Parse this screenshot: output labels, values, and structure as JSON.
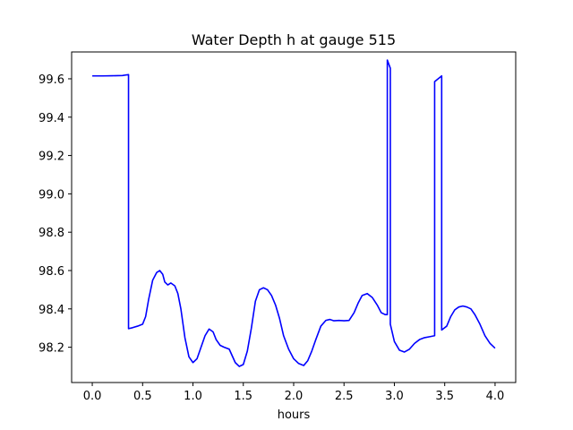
{
  "chart_data": {
    "type": "line",
    "title": "Water Depth h at gauge 515",
    "xlabel": "hours",
    "ylabel": "",
    "xlim": [
      -0.205,
      4.205
    ],
    "ylim": [
      98.016,
      99.74
    ],
    "xticks": [
      0.0,
      0.5,
      1.0,
      1.5,
      2.0,
      2.5,
      3.0,
      3.5,
      4.0
    ],
    "xtick_labels": [
      "0.0",
      "0.5",
      "1.0",
      "1.5",
      "2.0",
      "2.5",
      "3.0",
      "3.5",
      "4.0"
    ],
    "yticks": [
      98.2,
      98.4,
      98.6,
      98.8,
      99.0,
      99.2,
      99.4,
      99.6
    ],
    "ytick_labels": [
      "98.2",
      "98.4",
      "98.6",
      "98.8",
      "99.0",
      "99.2",
      "99.4",
      "99.6"
    ],
    "grid": false,
    "series": [
      {
        "color": "#0000ff",
        "x": [
          0.0,
          0.1,
          0.2,
          0.3,
          0.36,
          0.36,
          0.4,
          0.45,
          0.5,
          0.53,
          0.56,
          0.6,
          0.64,
          0.67,
          0.7,
          0.72,
          0.75,
          0.78,
          0.82,
          0.85,
          0.88,
          0.92,
          0.96,
          1.0,
          1.04,
          1.08,
          1.12,
          1.16,
          1.2,
          1.23,
          1.27,
          1.31,
          1.36,
          1.42,
          1.46,
          1.5,
          1.54,
          1.58,
          1.62,
          1.66,
          1.7,
          1.74,
          1.78,
          1.82,
          1.86,
          1.9,
          1.95,
          2.0,
          2.05,
          2.1,
          2.14,
          2.18,
          2.22,
          2.27,
          2.32,
          2.36,
          2.4,
          2.45,
          2.5,
          2.55,
          2.6,
          2.64,
          2.68,
          2.73,
          2.78,
          2.83,
          2.87,
          2.91,
          2.93,
          2.93,
          2.96,
          2.96,
          3.0,
          3.05,
          3.1,
          3.15,
          3.2,
          3.25,
          3.3,
          3.35,
          3.4,
          3.4,
          3.47,
          3.47,
          3.52,
          3.56,
          3.6,
          3.64,
          3.68,
          3.72,
          3.76,
          3.8,
          3.85,
          3.9,
          3.95,
          4.0
        ],
        "y": [
          99.615,
          99.615,
          99.616,
          99.617,
          99.622,
          98.297,
          98.302,
          98.31,
          98.32,
          98.36,
          98.45,
          98.55,
          98.59,
          98.6,
          98.58,
          98.54,
          98.525,
          98.535,
          98.52,
          98.48,
          98.4,
          98.25,
          98.15,
          98.12,
          98.14,
          98.2,
          98.26,
          98.295,
          98.28,
          98.24,
          98.21,
          98.2,
          98.19,
          98.12,
          98.1,
          98.11,
          98.18,
          98.3,
          98.44,
          98.5,
          98.51,
          98.5,
          98.47,
          98.42,
          98.35,
          98.26,
          98.19,
          98.14,
          98.115,
          98.105,
          98.13,
          98.18,
          98.24,
          98.31,
          98.34,
          98.345,
          98.338,
          98.34,
          98.338,
          98.34,
          98.38,
          98.43,
          98.47,
          98.48,
          98.46,
          98.42,
          98.38,
          98.37,
          98.37,
          99.698,
          99.655,
          98.32,
          98.23,
          98.185,
          98.175,
          98.19,
          98.22,
          98.24,
          98.25,
          98.255,
          98.26,
          99.585,
          99.615,
          98.29,
          98.31,
          98.36,
          98.395,
          98.41,
          98.415,
          98.41,
          98.4,
          98.37,
          98.32,
          98.26,
          98.22,
          98.195
        ]
      }
    ]
  }
}
